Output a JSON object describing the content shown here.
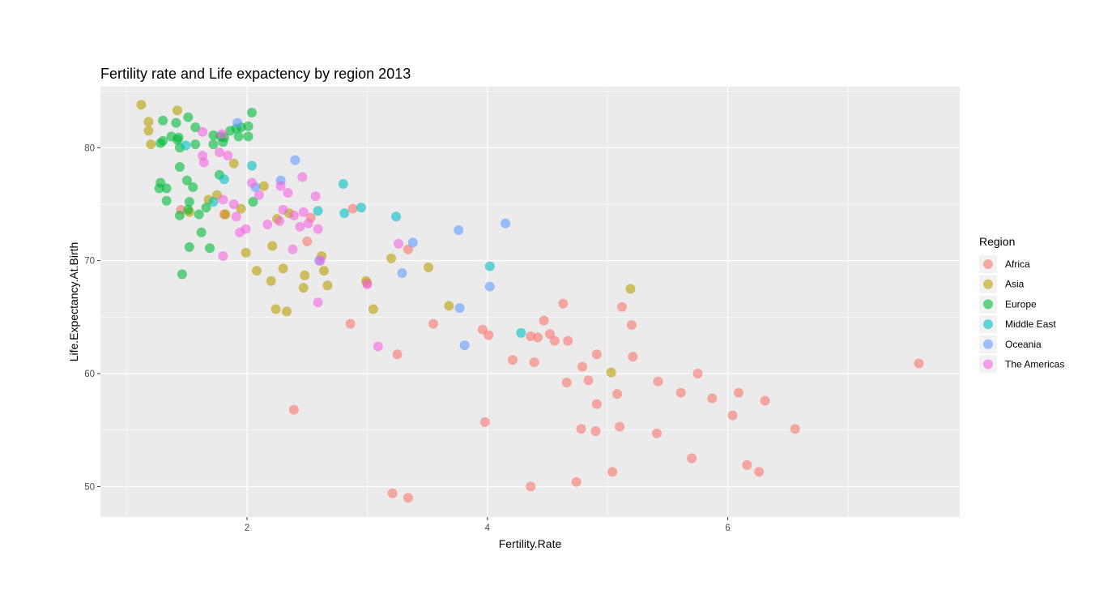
{
  "chart_data": {
    "type": "scatter",
    "title": "Fertility rate and Life expactency by region 2013",
    "xlabel": "Fertility.Rate",
    "ylabel": "Life.Expectancy.At.Birth",
    "xlim": [
      0.78,
      7.93
    ],
    "ylim": [
      47.3,
      85.4
    ],
    "xticks": [
      2,
      4,
      6
    ],
    "yticks": [
      50,
      60,
      70,
      80
    ],
    "grid": true,
    "legend_title": "Region",
    "legend_position": "right",
    "point_opacity": 0.6,
    "series": [
      {
        "name": "Africa",
        "color": "#F8766D",
        "points": [
          [
            1.45,
            74.5
          ],
          [
            1.81,
            74.1
          ],
          [
            2.39,
            56.8
          ],
          [
            2.5,
            71.7
          ],
          [
            2.53,
            73.8
          ],
          [
            2.86,
            64.4
          ],
          [
            2.88,
            74.6
          ],
          [
            3.0,
            68.0
          ],
          [
            3.21,
            49.4
          ],
          [
            3.25,
            61.7
          ],
          [
            3.34,
            71.0
          ],
          [
            3.34,
            49.0
          ],
          [
            3.55,
            64.4
          ],
          [
            3.96,
            63.9
          ],
          [
            3.98,
            55.7
          ],
          [
            4.01,
            63.4
          ],
          [
            4.21,
            61.2
          ],
          [
            4.36,
            63.3
          ],
          [
            4.36,
            50.0
          ],
          [
            4.39,
            61.0
          ],
          [
            4.42,
            63.2
          ],
          [
            4.47,
            64.7
          ],
          [
            4.52,
            63.5
          ],
          [
            4.56,
            62.9
          ],
          [
            4.63,
            66.2
          ],
          [
            4.66,
            59.2
          ],
          [
            4.67,
            62.9
          ],
          [
            4.74,
            50.4
          ],
          [
            4.78,
            55.1
          ],
          [
            4.79,
            60.6
          ],
          [
            4.84,
            59.4
          ],
          [
            4.9,
            54.9
          ],
          [
            4.91,
            61.7
          ],
          [
            4.91,
            57.3
          ],
          [
            5.04,
            51.3
          ],
          [
            5.08,
            58.2
          ],
          [
            5.1,
            55.3
          ],
          [
            5.12,
            65.9
          ],
          [
            5.2,
            64.3
          ],
          [
            5.21,
            61.5
          ],
          [
            5.42,
            59.3
          ],
          [
            5.41,
            54.7
          ],
          [
            5.61,
            58.3
          ],
          [
            5.7,
            52.5
          ],
          [
            5.75,
            60.0
          ],
          [
            5.87,
            57.8
          ],
          [
            6.04,
            56.3
          ],
          [
            6.09,
            58.3
          ],
          [
            6.16,
            51.9
          ],
          [
            6.26,
            51.3
          ],
          [
            6.31,
            57.6
          ],
          [
            6.56,
            55.1
          ],
          [
            7.59,
            60.9
          ]
        ]
      },
      {
        "name": "Asia",
        "color": "#B79F00",
        "points": [
          [
            1.12,
            83.8
          ],
          [
            1.18,
            82.3
          ],
          [
            1.18,
            81.5
          ],
          [
            1.2,
            80.3
          ],
          [
            1.42,
            83.3
          ],
          [
            1.52,
            74.3
          ],
          [
            1.68,
            75.4
          ],
          [
            1.75,
            75.8
          ],
          [
            1.82,
            74.1
          ],
          [
            1.89,
            78.6
          ],
          [
            1.95,
            74.6
          ],
          [
            1.99,
            70.7
          ],
          [
            2.08,
            69.1
          ],
          [
            2.14,
            76.6
          ],
          [
            2.2,
            68.2
          ],
          [
            2.21,
            71.3
          ],
          [
            2.24,
            65.7
          ],
          [
            2.25,
            73.7
          ],
          [
            2.3,
            69.3
          ],
          [
            2.33,
            65.5
          ],
          [
            2.35,
            74.2
          ],
          [
            2.47,
            67.6
          ],
          [
            2.48,
            68.7
          ],
          [
            2.62,
            70.4
          ],
          [
            2.64,
            69.1
          ],
          [
            2.67,
            67.8
          ],
          [
            2.99,
            68.2
          ],
          [
            3.05,
            65.7
          ],
          [
            3.2,
            70.2
          ],
          [
            3.51,
            69.4
          ],
          [
            3.68,
            66.0
          ],
          [
            5.03,
            60.1
          ],
          [
            5.19,
            67.5
          ]
        ]
      },
      {
        "name": "Europe",
        "color": "#00BA38",
        "points": [
          [
            1.27,
            76.4
          ],
          [
            1.28,
            80.4
          ],
          [
            1.28,
            76.9
          ],
          [
            1.3,
            82.4
          ],
          [
            1.3,
            80.6
          ],
          [
            1.33,
            76.4
          ],
          [
            1.33,
            75.3
          ],
          [
            1.37,
            81.0
          ],
          [
            1.41,
            82.2
          ],
          [
            1.42,
            80.7
          ],
          [
            1.43,
            80.9
          ],
          [
            1.44,
            78.3
          ],
          [
            1.44,
            80.0
          ],
          [
            1.44,
            74.0
          ],
          [
            1.46,
            68.8
          ],
          [
            1.5,
            77.1
          ],
          [
            1.51,
            82.7
          ],
          [
            1.51,
            74.5
          ],
          [
            1.52,
            71.2
          ],
          [
            1.52,
            75.2
          ],
          [
            1.55,
            76.5
          ],
          [
            1.57,
            81.8
          ],
          [
            1.57,
            80.3
          ],
          [
            1.6,
            74.1
          ],
          [
            1.62,
            72.5
          ],
          [
            1.66,
            74.7
          ],
          [
            1.69,
            71.1
          ],
          [
            1.72,
            81.1
          ],
          [
            1.72,
            80.3
          ],
          [
            1.77,
            77.6
          ],
          [
            1.78,
            81.0
          ],
          [
            1.8,
            80.5
          ],
          [
            1.81,
            80.9
          ],
          [
            1.86,
            81.5
          ],
          [
            1.91,
            81.7
          ],
          [
            1.93,
            81.0
          ],
          [
            1.95,
            81.8
          ],
          [
            2.01,
            81.9
          ],
          [
            2.01,
            81.0
          ],
          [
            2.04,
            83.1
          ],
          [
            2.05,
            75.2
          ]
        ]
      },
      {
        "name": "Middle East",
        "color": "#00BFC4",
        "points": [
          [
            1.49,
            80.2
          ],
          [
            1.72,
            75.2
          ],
          [
            1.81,
            77.2
          ],
          [
            2.04,
            78.4
          ],
          [
            2.59,
            74.4
          ],
          [
            2.8,
            76.8
          ],
          [
            2.81,
            74.2
          ],
          [
            2.95,
            74.7
          ],
          [
            3.24,
            73.9
          ],
          [
            4.02,
            69.5
          ],
          [
            4.28,
            63.6
          ]
        ]
      },
      {
        "name": "Oceania",
        "color": "#619CFF",
        "points": [
          [
            1.92,
            82.2
          ],
          [
            2.07,
            76.5
          ],
          [
            2.28,
            77.1
          ],
          [
            2.4,
            78.9
          ],
          [
            2.6,
            70.0
          ],
          [
            3.29,
            68.9
          ],
          [
            3.38,
            71.6
          ],
          [
            3.76,
            72.7
          ],
          [
            3.77,
            65.8
          ],
          [
            3.81,
            62.5
          ],
          [
            4.02,
            67.7
          ],
          [
            4.15,
            73.3
          ]
        ]
      },
      {
        "name": "The Americas",
        "color": "#F564E3",
        "points": [
          [
            1.63,
            81.4
          ],
          [
            1.63,
            79.3
          ],
          [
            1.64,
            78.7
          ],
          [
            1.77,
            79.6
          ],
          [
            1.79,
            81.2
          ],
          [
            1.8,
            75.4
          ],
          [
            1.8,
            70.4
          ],
          [
            1.84,
            79.3
          ],
          [
            1.89,
            75.0
          ],
          [
            1.91,
            73.9
          ],
          [
            1.94,
            72.5
          ],
          [
            1.99,
            72.8
          ],
          [
            2.04,
            76.9
          ],
          [
            2.1,
            75.8
          ],
          [
            2.17,
            73.2
          ],
          [
            2.27,
            73.5
          ],
          [
            2.28,
            76.6
          ],
          [
            2.3,
            74.5
          ],
          [
            2.34,
            76.0
          ],
          [
            2.38,
            71.0
          ],
          [
            2.39,
            74.0
          ],
          [
            2.44,
            73.0
          ],
          [
            2.46,
            77.4
          ],
          [
            2.47,
            74.3
          ],
          [
            2.51,
            73.3
          ],
          [
            2.57,
            75.7
          ],
          [
            2.59,
            66.3
          ],
          [
            2.59,
            72.8
          ],
          [
            2.61,
            70.0
          ],
          [
            3.0,
            67.9
          ],
          [
            3.09,
            62.4
          ],
          [
            3.26,
            71.5
          ]
        ]
      }
    ]
  }
}
